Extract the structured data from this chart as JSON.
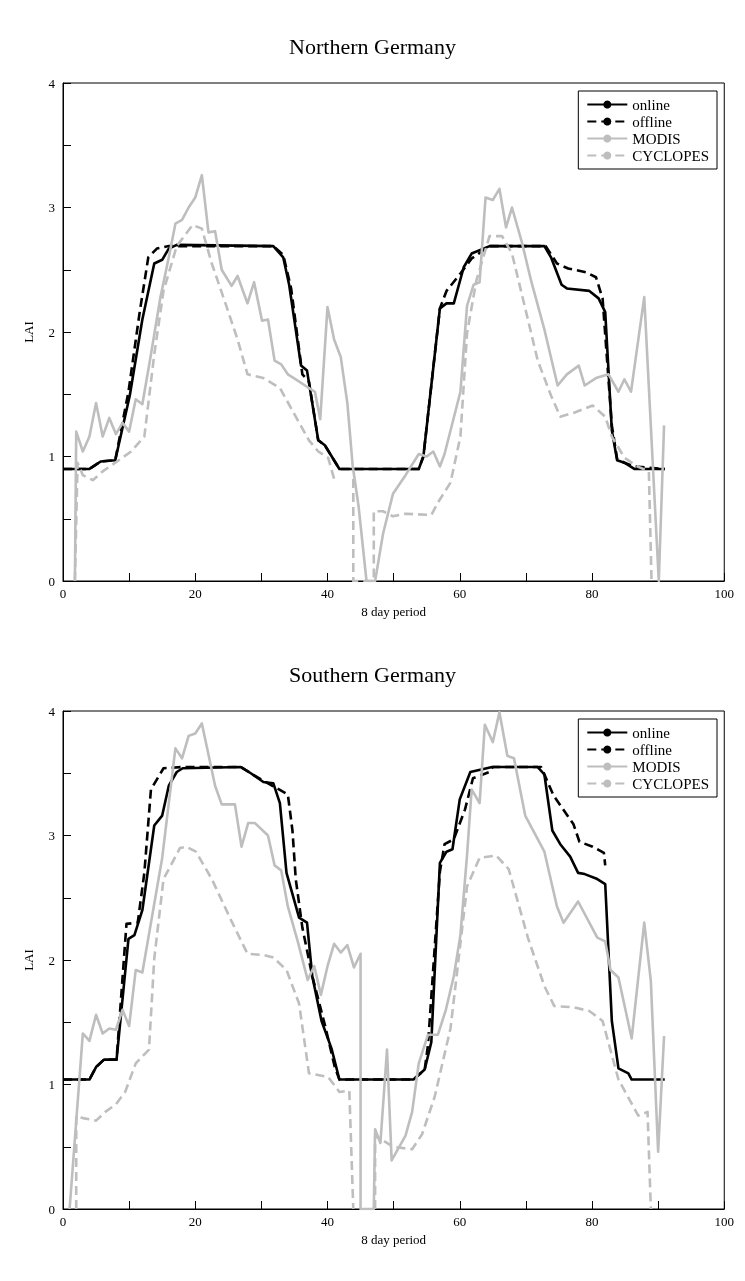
{
  "chart_data": [
    {
      "type": "line",
      "title": "Northern Germany",
      "xlabel": "8 day period",
      "ylabel": "LAI",
      "legend": "top right",
      "grid": false,
      "marker": "none",
      "xlim": [
        0,
        100
      ],
      "xticks": [
        0,
        {
          "value": 10,
          "label": null
        },
        20,
        {
          "value": 30,
          "label": null
        },
        40,
        {
          "value": 50,
          "label": null
        },
        60,
        {
          "value": 70,
          "label": null
        },
        80,
        {
          "value": 90,
          "label": null
        },
        100
      ],
      "ylim": [
        0,
        4
      ],
      "yticks": [
        0,
        {
          "value": 0.5,
          "label": null
        },
        1,
        {
          "value": 1.5,
          "label": null
        },
        2,
        {
          "value": 2.5,
          "label": null
        },
        3,
        {
          "value": 3.5,
          "label": null
        },
        4
      ],
      "series": [
        {
          "name": "online",
          "color": "#000000",
          "line_style": "solid",
          "x": [
            0,
            4,
            5.7,
            7.9,
            10.1,
            12,
            13.8,
            15,
            16,
            17.2,
            31.8,
            33.3,
            34.2,
            36,
            36.9,
            38.6,
            39.6,
            41.8,
            53.8,
            54.5,
            57,
            58,
            59.1,
            60.6,
            61.8,
            64.5,
            72.8,
            73.8,
            75.4,
            76.2,
            79.6,
            81,
            82,
            83,
            83.8,
            84.9,
            86.4,
            91
          ],
          "values": [
            0.9,
            0.9,
            0.96,
            0.97,
            1.49,
            2.1,
            2.55,
            2.58,
            2.67,
            2.7,
            2.69,
            2.6,
            2.38,
            1.73,
            1.69,
            1.13,
            1.09,
            0.9,
            0.9,
            1.0,
            2.19,
            2.23,
            2.23,
            2.52,
            2.63,
            2.69,
            2.69,
            2.6,
            2.38,
            2.35,
            2.33,
            2.27,
            2.16,
            1.21,
            0.97,
            0.95,
            0.9,
            0.9
          ]
        },
        {
          "name": "offline",
          "color": "#000000",
          "line_style": "dashed",
          "x": [
            0,
            4,
            5.7,
            7.9,
            9.9,
            11.6,
            12.9,
            14.2,
            16,
            31.8,
            33.3,
            34.5,
            36.2,
            37.2,
            38.6,
            39.6,
            41.8,
            53.8,
            54.5,
            57,
            58,
            60.1,
            61.8,
            64.5,
            73,
            74.7,
            76.4,
            79.1,
            80.6,
            81.6,
            83,
            83.8,
            84.9,
            86.4,
            91
          ],
          "values": [
            0.9,
            0.9,
            0.96,
            0.97,
            1.52,
            2.16,
            2.6,
            2.67,
            2.69,
            2.69,
            2.62,
            2.35,
            1.66,
            1.6,
            1.13,
            1.09,
            0.9,
            0.9,
            1.0,
            2.19,
            2.33,
            2.47,
            2.59,
            2.69,
            2.69,
            2.55,
            2.51,
            2.48,
            2.44,
            2.27,
            1.25,
            0.98,
            0.95,
            0.92,
            0.9
          ]
        },
        {
          "name": "MODIS",
          "color": "#bebebe",
          "line_style": "solid",
          "x": [
            1.8,
            2,
            3,
            4,
            5,
            6,
            7,
            8,
            9,
            10,
            11,
            12,
            13.3,
            14.7,
            16,
            17,
            18,
            19,
            20,
            21,
            22,
            23,
            24,
            25.5,
            26.4,
            27.9,
            28.9,
            30.1,
            31,
            32,
            33,
            34,
            35.2,
            36.9,
            38.1,
            38.9,
            40,
            41,
            42,
            43,
            43.8,
            44.7,
            45.9,
            47.2,
            48.4,
            49.9,
            51.8,
            53.8,
            55,
            56,
            57,
            57.7,
            60.1,
            61.1,
            62.1,
            63,
            63.9,
            65,
            66,
            67,
            67.9,
            69.4,
            70.8,
            72.8,
            74.8,
            76.2,
            78,
            78.9,
            80.6,
            82.5,
            84,
            84.9,
            85.9,
            87.9,
            90.1,
            90.9
          ],
          "values": [
            0,
            1.2,
            1.04,
            1.16,
            1.43,
            1.16,
            1.31,
            1.18,
            1.27,
            1.2,
            1.46,
            1.42,
            1.82,
            2.27,
            2.6,
            2.87,
            2.9,
            3.0,
            3.08,
            3.26,
            2.8,
            2.81,
            2.5,
            2.37,
            2.45,
            2.23,
            2.4,
            2.09,
            2.1,
            1.77,
            1.74,
            1.66,
            1.62,
            1.56,
            1.52,
            1.3,
            2.2,
            1.94,
            1.8,
            1.43,
            0.93,
            0.6,
            0,
            0,
            0.38,
            0.7,
            0.85,
            1.02,
            1.0,
            1.04,
            0.92,
            1.02,
            1.52,
            2.21,
            2.38,
            2.4,
            3.08,
            3.06,
            3.15,
            2.84,
            3.0,
            2.72,
            2.41,
            2.02,
            1.57,
            1.66,
            1.73,
            1.57,
            1.63,
            1.66,
            1.52,
            1.62,
            1.52,
            2.28,
            0,
            1.25
          ]
        },
        {
          "name": "CYCLOPES",
          "color": "#bebebe",
          "line_style": "dashed",
          "x": [
            1.8,
            2.2,
            3,
            4.5,
            6,
            7.9,
            10.3,
            12.3,
            13.8,
            15.2,
            17.2,
            19.6,
            21,
            22.5,
            24.5,
            26.4,
            27.9,
            30.3,
            32.8,
            35.2,
            37.2,
            38.6,
            40.1,
            41,
            42.5,
            43.9,
            43.9,
            47,
            47,
            48.4,
            49.9,
            51.8,
            55.7,
            56.7,
            58.6,
            60.1,
            61.1,
            62.5,
            64.5,
            66.4,
            67.9,
            69.9,
            71.8,
            73.8,
            75.2,
            77.2,
            80.1,
            82,
            83,
            84.9,
            86.9,
            88.6,
            89
          ],
          "values": [
            0,
            0.95,
            0.85,
            0.81,
            0.88,
            0.95,
            1.04,
            1.16,
            1.82,
            2.33,
            2.69,
            2.86,
            2.83,
            2.55,
            2.24,
            1.94,
            1.66,
            1.63,
            1.55,
            1.32,
            1.13,
            1.04,
            0.99,
            0.82,
            null,
            0.82,
            0,
            0,
            0.56,
            0.56,
            0.52,
            0.54,
            0.53,
            0.63,
            0.79,
            1.16,
            1.99,
            2.41,
            2.77,
            2.77,
            2.63,
            2.19,
            1.77,
            1.49,
            1.32,
            1.35,
            1.41,
            1.32,
            1.16,
            0.99,
            0.92,
            0.88,
            0
          ]
        }
      ]
    },
    {
      "type": "line",
      "title": "Southern Germany",
      "xlabel": "8 day period",
      "ylabel": "LAI",
      "legend": "top right",
      "grid": false,
      "marker": "none",
      "xlim": [
        0,
        100
      ],
      "xticks": [
        0,
        {
          "value": 10,
          "label": null
        },
        20,
        {
          "value": 30,
          "label": null
        },
        40,
        {
          "value": 50,
          "label": null
        },
        60,
        {
          "value": 70,
          "label": null
        },
        80,
        {
          "value": 90,
          "label": null
        },
        100
      ],
      "ylim": [
        0,
        4
      ],
      "yticks": [
        0,
        {
          "value": 0.5,
          "label": null
        },
        1,
        {
          "value": 1.5,
          "label": null
        },
        2,
        {
          "value": 2.5,
          "label": null
        },
        3,
        {
          "value": 3.5,
          "label": null
        },
        4
      ],
      "series": [
        {
          "name": "online",
          "color": "#000000",
          "line_style": "solid",
          "x": [
            0,
            4,
            5,
            6.2,
            8.1,
            9.9,
            10.8,
            12,
            13.8,
            15,
            16,
            17.2,
            18.1,
            26.9,
            28.4,
            30.3,
            31.8,
            32.8,
            33.8,
            35.7,
            36.9,
            37.7,
            39.1,
            40.6,
            41.8,
            53,
            54.7,
            55.7,
            57,
            58,
            58.9,
            60,
            61.6,
            64.9,
            71.8,
            72.8,
            74,
            75.2,
            76.7,
            77.9,
            78.9,
            80.8,
            82,
            83,
            84,
            85.5,
            86,
            91
          ],
          "values": [
            1.04,
            1.04,
            1.14,
            1.2,
            1.2,
            2.17,
            2.2,
            2.4,
            3.08,
            3.16,
            3.4,
            3.51,
            3.54,
            3.55,
            3.5,
            3.43,
            3.42,
            3.26,
            2.7,
            2.34,
            2.3,
            1.87,
            1.51,
            1.29,
            1.04,
            1.04,
            1.12,
            1.34,
            2.78,
            2.87,
            2.89,
            3.29,
            3.51,
            3.55,
            3.55,
            3.49,
            3.04,
            2.93,
            2.83,
            2.7,
            2.69,
            2.65,
            2.61,
            1.51,
            1.13,
            1.09,
            1.04,
            1.04
          ]
        },
        {
          "name": "offline",
          "color": "#000000",
          "line_style": "dashed",
          "x": [
            0,
            4,
            5,
            6.2,
            8.1,
            9.6,
            11.3,
            12.3,
            13.3,
            15.2,
            18.1,
            26.9,
            28.4,
            30.3,
            34,
            34.7,
            35.2,
            36.2,
            37.7,
            39.6,
            41.1,
            41.8,
            53,
            54.7,
            55.2,
            57,
            57.7,
            59.1,
            60.8,
            62,
            64.5,
            65,
            72.3,
            74.2,
            77.2,
            78.1,
            80.1,
            81.8,
            82
          ],
          "values": [
            1.04,
            1.04,
            1.14,
            1.2,
            1.2,
            2.29,
            2.3,
            2.7,
            3.37,
            3.54,
            3.55,
            3.55,
            3.5,
            3.44,
            3.33,
            3.04,
            2.65,
            2.26,
            1.87,
            1.48,
            1.14,
            1.04,
            1.04,
            1.12,
            1.32,
            2.71,
            2.93,
            2.97,
            3.21,
            3.46,
            3.51,
            3.55,
            3.55,
            3.32,
            3.09,
            2.95,
            2.91,
            2.86,
            2.76
          ]
        },
        {
          "name": "MODIS",
          "color": "#bebebe",
          "line_style": "solid",
          "x": [
            1,
            3,
            4,
            5,
            6,
            7,
            8,
            9,
            10,
            11,
            12,
            15,
            17,
            18,
            19,
            20,
            21,
            23,
            24,
            26,
            27,
            28,
            29,
            31,
            32,
            33,
            34,
            35.5,
            37,
            38,
            39,
            40,
            41,
            42,
            43,
            44,
            45,
            45,
            47,
            47.2,
            48,
            49,
            49.7,
            51.8,
            52.8,
            53.8,
            55.2,
            56.7,
            57.9,
            59.1,
            60.1,
            61.1,
            61.8,
            63,
            63.8,
            65,
            66,
            67.2,
            68.2,
            69.9,
            72.8,
            74.7,
            75.7,
            77.9,
            80.8,
            82,
            82.8,
            84,
            86,
            87.9,
            88.9,
            90,
            90.9
          ],
          "values": [
            0,
            1.41,
            1.35,
            1.56,
            1.41,
            1.45,
            1.44,
            1.6,
            1.47,
            1.92,
            1.9,
            2.82,
            3.7,
            3.62,
            3.8,
            3.82,
            3.9,
            3.4,
            3.25,
            3.25,
            2.91,
            3.1,
            3.1,
            3.0,
            2.76,
            2.72,
            2.43,
            2.15,
            1.84,
            1.95,
            1.72,
            1.95,
            2.13,
            2.06,
            2.12,
            1.94,
            2.05,
            0,
            0,
            0.64,
            0.53,
            1.28,
            0.39,
            0.59,
            0.78,
            1.17,
            1.4,
            1.4,
            1.6,
            1.87,
            2.2,
            2.84,
            3.37,
            3.26,
            3.89,
            3.75,
            3.99,
            3.64,
            3.62,
            3.16,
            2.87,
            2.43,
            2.3,
            2.47,
            2.18,
            2.15,
            1.92,
            1.86,
            1.37,
            2.3,
            1.83,
            0.46,
            1.39
          ]
        },
        {
          "name": "CYCLOPES",
          "color": "#bebebe",
          "line_style": "dashed",
          "x": [
            2,
            2,
            3,
            5,
            6.4,
            8,
            9.4,
            11,
            13,
            13.8,
            15.2,
            17.7,
            18.6,
            20.1,
            22.5,
            25.5,
            27.9,
            30.3,
            31.8,
            33.8,
            35.7,
            37.2,
            40.1,
            41.8,
            43.3,
            43.9,
            45.5,
            47.2,
            47.2,
            49.9,
            52.8,
            54.3,
            56.2,
            58.6,
            61.1,
            63,
            65.5,
            67.4,
            70.3,
            72.8,
            74.3,
            77.2,
            79.6,
            81.6,
            84,
            87,
            88.4,
            88.9
          ],
          "values": [
            0,
            0.75,
            0.73,
            0.71,
            0.78,
            0.84,
            0.94,
            1.17,
            1.28,
            2.01,
            2.65,
            2.9,
            2.91,
            2.87,
            2.65,
            2.31,
            2.05,
            2.04,
            2.02,
            1.92,
            1.65,
            1.09,
            1.06,
            0.94,
            0.95,
            0,
            null,
            0,
            0.59,
            0.5,
            0.48,
            0.6,
            0.9,
            1.45,
            2.59,
            2.82,
            2.84,
            2.73,
            2.18,
            1.79,
            1.63,
            1.62,
            1.59,
            1.51,
            1.04,
            0.75,
            0.78,
            0
          ]
        }
      ]
    }
  ]
}
